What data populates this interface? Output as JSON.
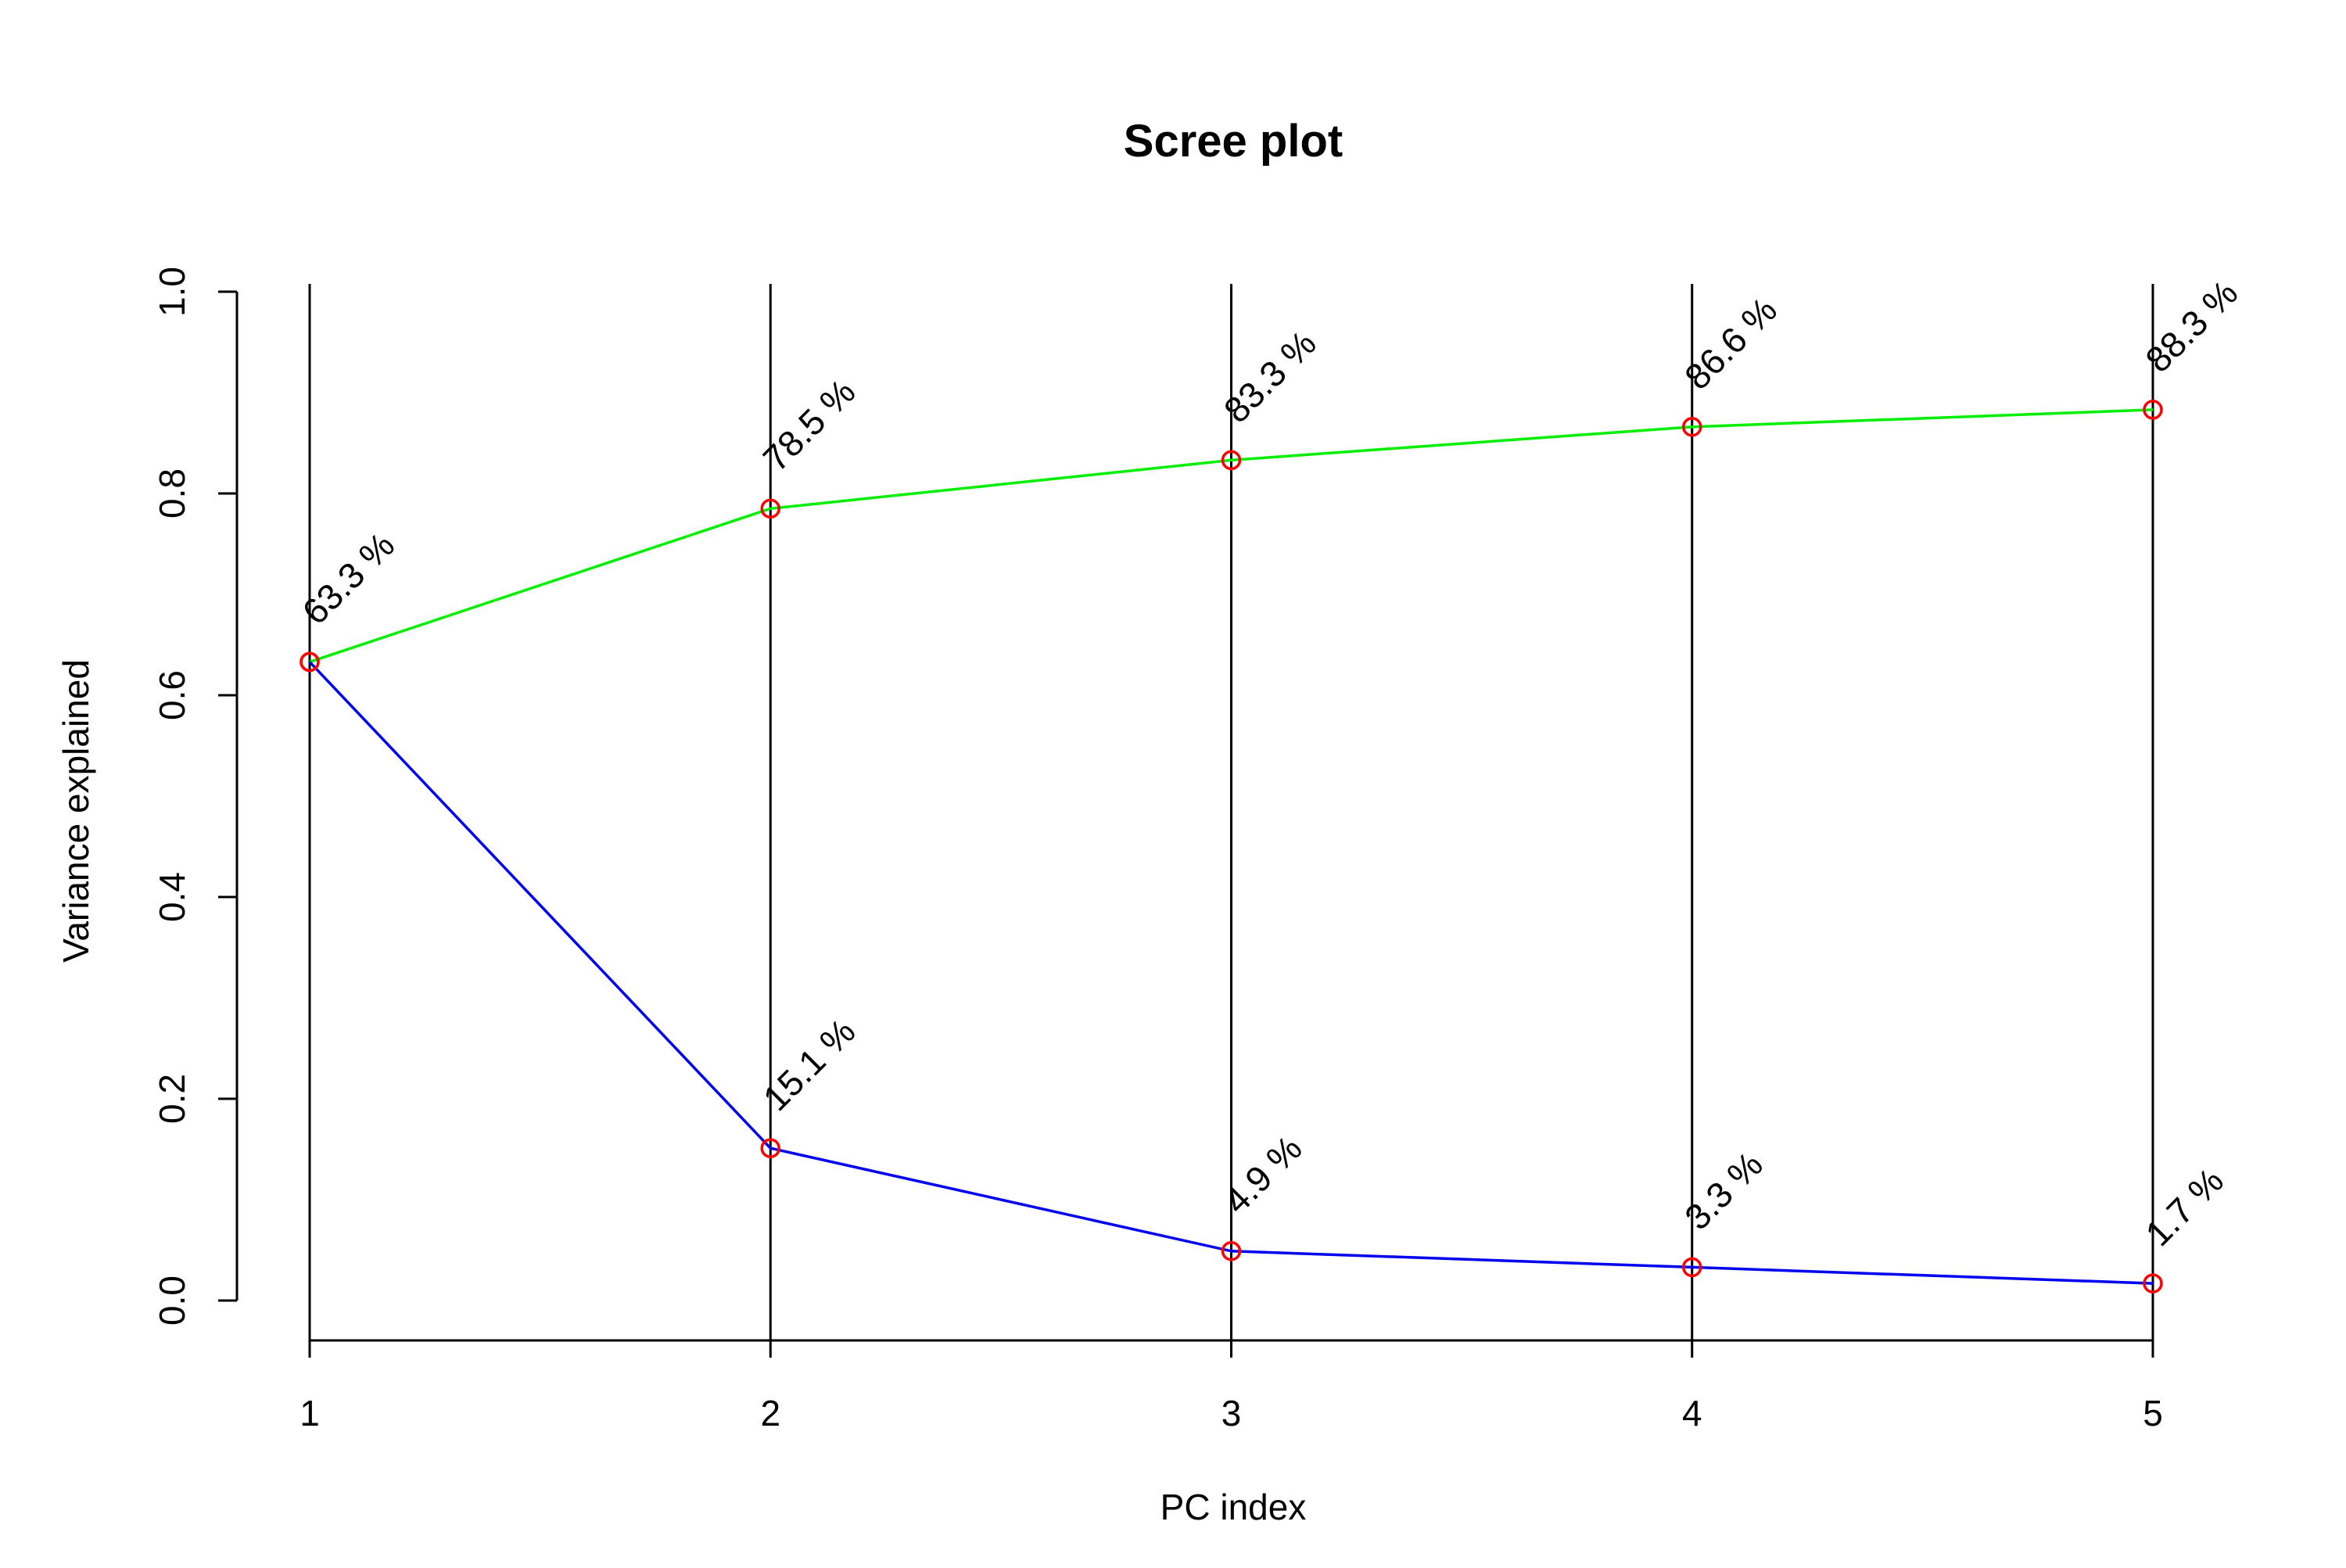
{
  "chart_data": {
    "type": "line",
    "title": "Scree plot",
    "xlabel": "PC index",
    "ylabel": "Variance explained",
    "x": [
      1,
      2,
      3,
      4,
      5
    ],
    "x_tick_labels": [
      "1",
      "2",
      "3",
      "4",
      "5"
    ],
    "ylim": [
      0,
      1
    ],
    "y_ticks": [
      0.0,
      0.2,
      0.4,
      0.6,
      0.8,
      1.0
    ],
    "y_tick_labels": [
      "0.0",
      "0.2",
      "0.4",
      "0.6",
      "0.8",
      "1.0"
    ],
    "grid": "vertical lines at each PC index",
    "series": [
      {
        "values": [
          0.633,
          0.785,
          0.833,
          0.866,
          0.883
        ],
        "labels": [
          "63.3 %",
          "78.5 %",
          "83.3 %",
          "86.6 %",
          "88.3 %"
        ],
        "line_color": "#00ee00",
        "marker_color": "#ff0000"
      },
      {
        "values": [
          0.633,
          0.151,
          0.049,
          0.033,
          0.017
        ],
        "labels": [
          "",
          "15.1 %",
          "4.9 %",
          "3.3 %",
          "1.7 %"
        ],
        "line_color": "#0000ee",
        "marker_color": "#ff0000"
      }
    ]
  }
}
